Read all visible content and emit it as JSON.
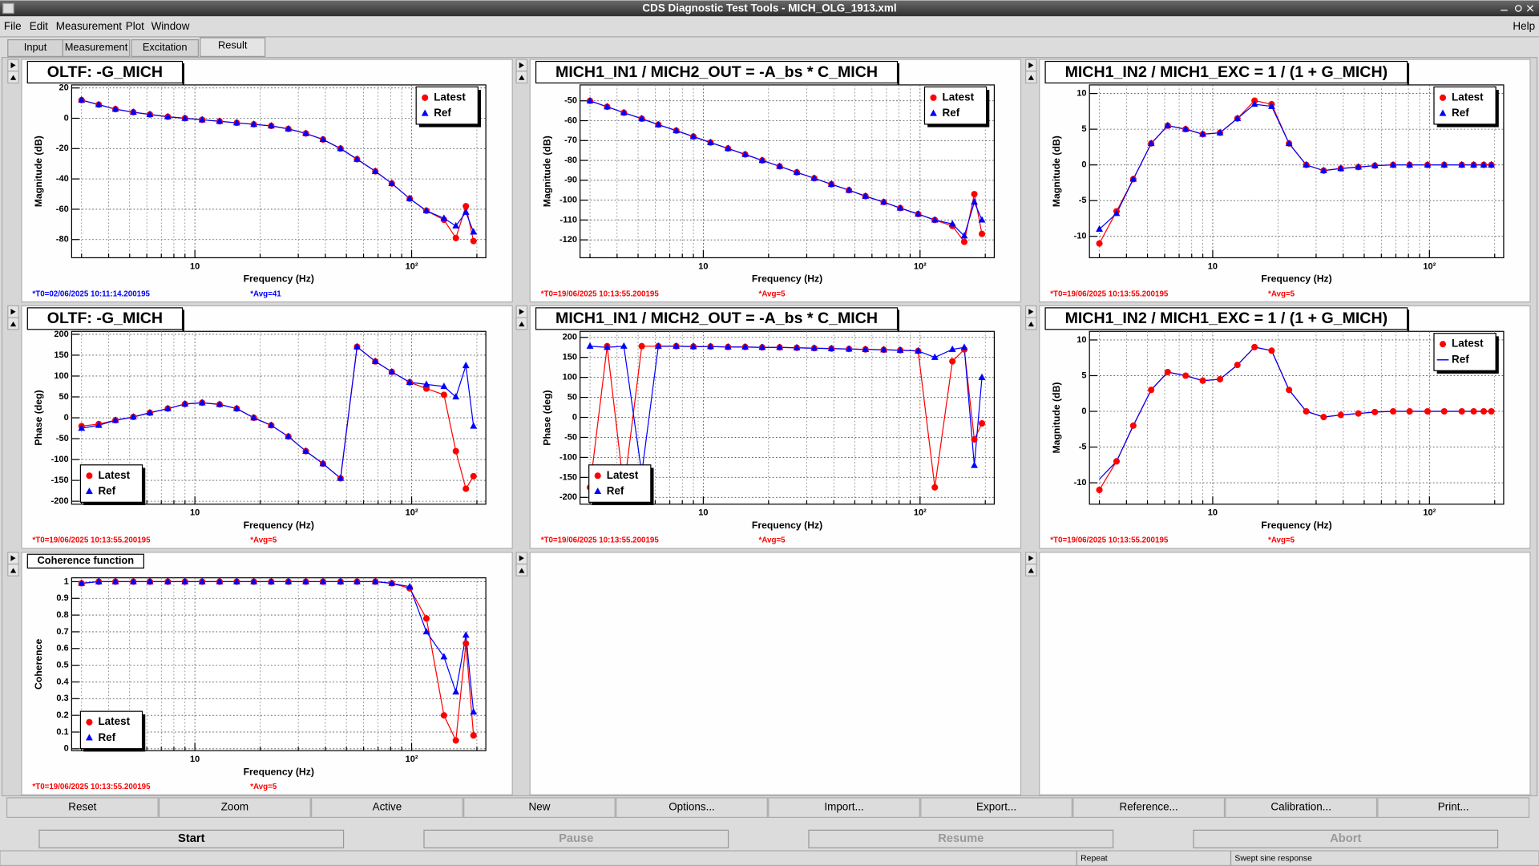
{
  "window_title": "CDS Diagnostic Test Tools - MICH_OLG_1913.xml",
  "menu": [
    "File",
    "Edit",
    "Measurement",
    "Plot",
    "Window"
  ],
  "help": "Help",
  "tabs": [
    "Input",
    "Measurement",
    "Excitation",
    "Result"
  ],
  "chart_data": [
    {
      "type": "line",
      "title": "OLTF: -G_MICH",
      "xlabel": "Frequency (Hz)",
      "ylabel": "Magnitude (dB)",
      "log_x": true,
      "grid": true,
      "legend": "upper right",
      "x": [
        3,
        3.6,
        4.3,
        5.2,
        6.2,
        7.5,
        9,
        10.8,
        13,
        15.6,
        18.7,
        22.5,
        27,
        32.5,
        39,
        47,
        56,
        68,
        81,
        98,
        117,
        141,
        160,
        178,
        193
      ],
      "series": [
        {
          "name": "Latest",
          "color": "#ff0000",
          "marker": "circle",
          "values": [
            12,
            9,
            6,
            4,
            2.5,
            1,
            0,
            -1,
            -2,
            -3,
            -4,
            -5,
            -7,
            -10,
            -14,
            -20,
            -27,
            -35,
            -43,
            -53,
            -61,
            -67,
            -79,
            -58,
            -81
          ]
        },
        {
          "name": "Ref",
          "color": "#0000ff",
          "marker": "triangle",
          "values": [
            12,
            9,
            6,
            4,
            2.5,
            1,
            0,
            -1,
            -2,
            -3,
            -4,
            -5,
            -7,
            -10,
            -14,
            -20,
            -27,
            -35,
            -43,
            -53,
            -61,
            -66,
            -71,
            -62,
            -75
          ]
        }
      ],
      "xlim": [
        2.7,
        220
      ],
      "xticks": [
        10,
        {
          "value": 100,
          "label": "10²"
        }
      ],
      "xminor_ticks": [
        3,
        4,
        5,
        6,
        7,
        8,
        9,
        20,
        30,
        40,
        50,
        60,
        70,
        80,
        90,
        200
      ],
      "ylim": [
        -92,
        22
      ],
      "yticks": [
        -80,
        -60,
        -40,
        -20,
        0,
        20
      ],
      "notes": [
        "*T0=02/06/2025 10:11:14.200195",
        "*Avg=41"
      ],
      "notes_color": "#0000ff"
    },
    {
      "type": "line",
      "title": "MICH1_IN1 / MICH2_OUT = -A_bs * C_MICH",
      "xlabel": "Frequency (Hz)",
      "ylabel": "Magnitude (dB)",
      "log_x": true,
      "grid": true,
      "legend": "upper right",
      "x": [
        3,
        3.6,
        4.3,
        5.2,
        6.2,
        7.5,
        9,
        10.8,
        13,
        15.6,
        18.7,
        22.5,
        27,
        32.5,
        39,
        47,
        56,
        68,
        81,
        98,
        117,
        141,
        160,
        178,
        193
      ],
      "series": [
        {
          "name": "Latest",
          "color": "#ff0000",
          "marker": "circle",
          "values": [
            -50,
            -53,
            -56,
            -59,
            -62,
            -65,
            -68,
            -71,
            -74,
            -77,
            -80,
            -83,
            -86,
            -89,
            -92,
            -95,
            -98,
            -101,
            -104,
            -107,
            -110,
            -113,
            -121,
            -97,
            -117
          ]
        },
        {
          "name": "Ref",
          "color": "#0000ff",
          "marker": "triangle",
          "values": [
            -50,
            -53,
            -56,
            -59,
            -62,
            -65,
            -68,
            -71,
            -74,
            -77,
            -80,
            -83,
            -86,
            -89,
            -92,
            -95,
            -98,
            -101,
            -104,
            -107,
            -110,
            -112,
            -118,
            -101,
            -110
          ]
        }
      ],
      "xlim": [
        2.7,
        220
      ],
      "xticks": [
        10,
        {
          "value": 100,
          "label": "10²"
        }
      ],
      "xminor_ticks": [
        3,
        4,
        5,
        6,
        7,
        8,
        9,
        20,
        30,
        40,
        50,
        60,
        70,
        80,
        90,
        200
      ],
      "ylim": [
        -129,
        -42
      ],
      "yticks": [
        -120,
        -110,
        -100,
        -90,
        -80,
        -70,
        -60,
        -50
      ],
      "notes": [
        "*T0=19/06/2025 10:13:55.200195",
        "*Avg=5"
      ],
      "notes_color": "#ff0000"
    },
    {
      "type": "line",
      "title": "MICH1_IN2 / MICH1_EXC = 1 / (1 + G_MICH)",
      "xlabel": "Frequency (Hz)",
      "ylabel": "Magnitude (dB)",
      "log_x": true,
      "grid": true,
      "legend": "upper right",
      "x": [
        3,
        3.6,
        4.3,
        5.2,
        6.2,
        7.5,
        9,
        10.8,
        13,
        15.6,
        18.7,
        22.5,
        27,
        32.5,
        39,
        47,
        56,
        68,
        81,
        98,
        117,
        141,
        160,
        178,
        193
      ],
      "series": [
        {
          "name": "Latest",
          "color": "#ff0000",
          "marker": "circle",
          "values": [
            -11,
            -6.5,
            -2,
            3,
            5.5,
            5,
            4.3,
            4.5,
            6.5,
            9,
            8.5,
            3,
            0,
            -0.8,
            -0.5,
            -0.3,
            -0.1,
            0,
            0,
            0,
            0,
            0,
            0,
            0,
            0
          ]
        },
        {
          "name": "Ref",
          "color": "#0000ff",
          "marker": "triangle",
          "values": [
            -9,
            -6.8,
            -2,
            3,
            5.5,
            5,
            4.3,
            4.5,
            6.5,
            8.5,
            8.2,
            3,
            0,
            -0.8,
            -0.5,
            -0.3,
            -0.1,
            0,
            0,
            0,
            0,
            0,
            0,
            0,
            0
          ]
        }
      ],
      "xlim": [
        2.7,
        220
      ],
      "xticks": [
        10,
        {
          "value": 100,
          "label": "10²"
        }
      ],
      "xminor_ticks": [
        3,
        4,
        5,
        6,
        7,
        8,
        9,
        20,
        30,
        40,
        50,
        60,
        70,
        80,
        90,
        200
      ],
      "ylim": [
        -13,
        11.2
      ],
      "yticks": [
        -10,
        -5,
        0,
        5,
        10
      ],
      "notes": [
        "*T0=19/06/2025 10:13:55.200195",
        "*Avg=5"
      ],
      "notes_color": "#ff0000"
    },
    {
      "type": "line",
      "title": "OLTF: -G_MICH",
      "xlabel": "Frequency (Hz)",
      "ylabel": "Phase (deg)",
      "log_x": true,
      "grid": true,
      "legend": "lower left",
      "x": [
        3,
        3.6,
        4.3,
        5.2,
        6.2,
        7.5,
        9,
        10.8,
        13,
        15.6,
        18.7,
        22.5,
        27,
        32.5,
        39,
        47,
        56,
        68,
        81,
        98,
        117,
        141,
        160,
        178,
        193
      ],
      "series": [
        {
          "name": "Latest",
          "color": "#ff0000",
          "marker": "circle",
          "values": [
            -20,
            -15,
            -6,
            2,
            12,
            22,
            33,
            36,
            32,
            22,
            0,
            -18,
            -45,
            -80,
            -110,
            -145,
            170,
            135,
            110,
            85,
            70,
            55,
            -80,
            -170,
            -140
          ]
        },
        {
          "name": "Ref",
          "color": "#0000ff",
          "marker": "triangle",
          "values": [
            -25,
            -18,
            -6,
            2,
            12,
            22,
            33,
            36,
            32,
            22,
            0,
            -18,
            -45,
            -80,
            -110,
            -145,
            170,
            135,
            110,
            85,
            80,
            75,
            50,
            125,
            -20
          ]
        }
      ],
      "xlim": [
        2.7,
        220
      ],
      "xticks": [
        10,
        {
          "value": 100,
          "label": "10²"
        }
      ],
      "xminor_ticks": [
        3,
        4,
        5,
        6,
        7,
        8,
        9,
        20,
        30,
        40,
        50,
        60,
        70,
        80,
        90,
        200
      ],
      "ylim": [
        -207,
        207
      ],
      "yticks": [
        -200,
        -150,
        -100,
        -50,
        0,
        50,
        100,
        150,
        200
      ],
      "notes": [
        "*T0=19/06/2025 10:13:55.200195",
        "*Avg=5"
      ],
      "notes_color": "#ff0000"
    },
    {
      "type": "line",
      "title": "MICH1_IN1 / MICH2_OUT = -A_bs * C_MICH",
      "xlabel": "Frequency (Hz)",
      "ylabel": "Phase (deg)",
      "log_x": true,
      "grid": true,
      "legend": "lower left",
      "x": [
        3,
        3.6,
        4.3,
        5.2,
        6.2,
        7.5,
        9,
        10.8,
        13,
        15.6,
        18.7,
        22.5,
        27,
        32.5,
        39,
        47,
        56,
        68,
        81,
        98,
        117,
        141,
        160,
        178,
        193
      ],
      "series": [
        {
          "name": "Latest",
          "color": "#ff0000",
          "marker": "circle",
          "values": [
            -175,
            178,
            -180,
            178,
            178,
            178,
            177,
            177,
            176,
            176,
            175,
            175,
            174,
            173,
            172,
            171,
            170,
            169,
            168,
            166,
            -175,
            140,
            170,
            -55,
            -15
          ]
        },
        {
          "name": "Ref",
          "color": "#0000ff",
          "marker": "triangle",
          "values": [
            178,
            175,
            178,
            -140,
            178,
            178,
            177,
            177,
            176,
            176,
            175,
            175,
            174,
            173,
            172,
            171,
            170,
            169,
            168,
            166,
            150,
            170,
            175,
            -120,
            100
          ]
        }
      ],
      "xlim": [
        2.7,
        220
      ],
      "xticks": [
        10,
        {
          "value": 100,
          "label": "10²"
        }
      ],
      "xminor_ticks": [
        3,
        4,
        5,
        6,
        7,
        8,
        9,
        20,
        30,
        40,
        50,
        60,
        70,
        80,
        90,
        200
      ],
      "ylim": [
        -217,
        215
      ],
      "yticks": [
        -200,
        -150,
        -100,
        -50,
        0,
        50,
        100,
        150,
        200
      ],
      "notes": [
        "*T0=19/06/2025 10:13:55.200195",
        "*Avg=5"
      ],
      "notes_color": "#ff0000"
    },
    {
      "type": "line",
      "title": "MICH1_IN2 / MICH1_EXC = 1 / (1 + G_MICH)",
      "xlabel": "Frequency (Hz)",
      "ylabel": "Magnitude (dB)",
      "log_x": true,
      "grid": true,
      "legend": "upper right",
      "x": [
        3,
        3.6,
        4.3,
        5.2,
        6.2,
        7.5,
        9,
        10.8,
        13,
        15.6,
        18.7,
        22.5,
        27,
        32.5,
        39,
        47,
        56,
        68,
        81,
        98,
        117,
        141,
        160,
        178,
        193
      ],
      "series": [
        {
          "name": "Latest",
          "color": "#ff0000",
          "marker": "circle",
          "values": [
            -11,
            -7,
            -2,
            3,
            5.5,
            5,
            4.3,
            4.5,
            6.5,
            9,
            8.5,
            3,
            0,
            -0.8,
            -0.5,
            -0.3,
            -0.1,
            0,
            0,
            0,
            0,
            0,
            0,
            0,
            0
          ]
        },
        {
          "name": "Ref",
          "color": "#0000ff",
          "marker": "none",
          "values": [
            -9.5,
            -7,
            -2,
            3,
            5.5,
            5,
            4.3,
            4.5,
            6.5,
            9,
            8.5,
            3,
            0,
            -0.8,
            -0.5,
            -0.3,
            -0.1,
            0,
            0,
            0,
            0,
            0,
            0,
            0,
            0
          ]
        }
      ],
      "xlim": [
        2.7,
        220
      ],
      "xticks": [
        10,
        {
          "value": 100,
          "label": "10²"
        }
      ],
      "xminor_ticks": [
        3,
        4,
        5,
        6,
        7,
        8,
        9,
        20,
        30,
        40,
        50,
        60,
        70,
        80,
        90,
        200
      ],
      "ylim": [
        -13,
        11.2
      ],
      "yticks": [
        -10,
        -5,
        0,
        5,
        10
      ],
      "notes": [
        "*T0=19/06/2025 10:13:55.200195",
        "*Avg=5"
      ],
      "notes_color": "#ff0000"
    },
    {
      "type": "line",
      "title": "Coherence function",
      "xlabel": "Frequency (Hz)",
      "ylabel": "Coherence",
      "log_x": true,
      "grid": true,
      "legend": "lower left",
      "x": [
        3,
        3.6,
        4.3,
        5.2,
        6.2,
        7.5,
        9,
        10.8,
        13,
        15.6,
        18.7,
        22.5,
        27,
        32.5,
        39,
        47,
        56,
        68,
        81,
        98,
        117,
        141,
        160,
        178,
        193
      ],
      "series": [
        {
          "name": "Latest",
          "color": "#ff0000",
          "marker": "circle",
          "values": [
            0.99,
            1,
            1,
            1,
            1,
            1,
            1,
            1,
            1,
            1,
            1,
            1,
            1,
            1,
            1,
            1,
            1,
            1,
            0.99,
            0.96,
            0.78,
            0.2,
            0.05,
            0.63,
            0.08
          ]
        },
        {
          "name": "Ref",
          "color": "#0000ff",
          "marker": "triangle",
          "values": [
            0.99,
            1,
            1,
            1,
            1,
            1,
            1,
            1,
            1,
            1,
            1,
            1,
            1,
            1,
            1,
            1,
            1,
            1,
            0.99,
            0.97,
            0.7,
            0.55,
            0.34,
            0.68,
            0.22
          ]
        }
      ],
      "xlim": [
        2.7,
        220
      ],
      "xticks": [
        10,
        {
          "value": 100,
          "label": "10²"
        }
      ],
      "xminor_ticks": [
        3,
        4,
        5,
        6,
        7,
        8,
        9,
        20,
        30,
        40,
        50,
        60,
        70,
        80,
        90,
        200
      ],
      "ylim": [
        -0.011,
        1.023
      ],
      "yticks": [
        0,
        0.1,
        0.2,
        0.3,
        0.4,
        0.5,
        0.6,
        0.7,
        0.8,
        0.9,
        1
      ],
      "notes": [
        "*T0=19/06/2025 10:13:55.200195",
        "*Avg=5"
      ],
      "notes_color": "#ff0000"
    }
  ],
  "buttons": [
    "Reset",
    "Zoom",
    "Active",
    "New",
    "Options...",
    "Import...",
    "Export...",
    "Reference...",
    "Calibration...",
    "Print..."
  ],
  "controls": [
    "Start",
    "Pause",
    "Resume",
    "Abort"
  ],
  "status": [
    "Repeat",
    "Swept sine response"
  ]
}
